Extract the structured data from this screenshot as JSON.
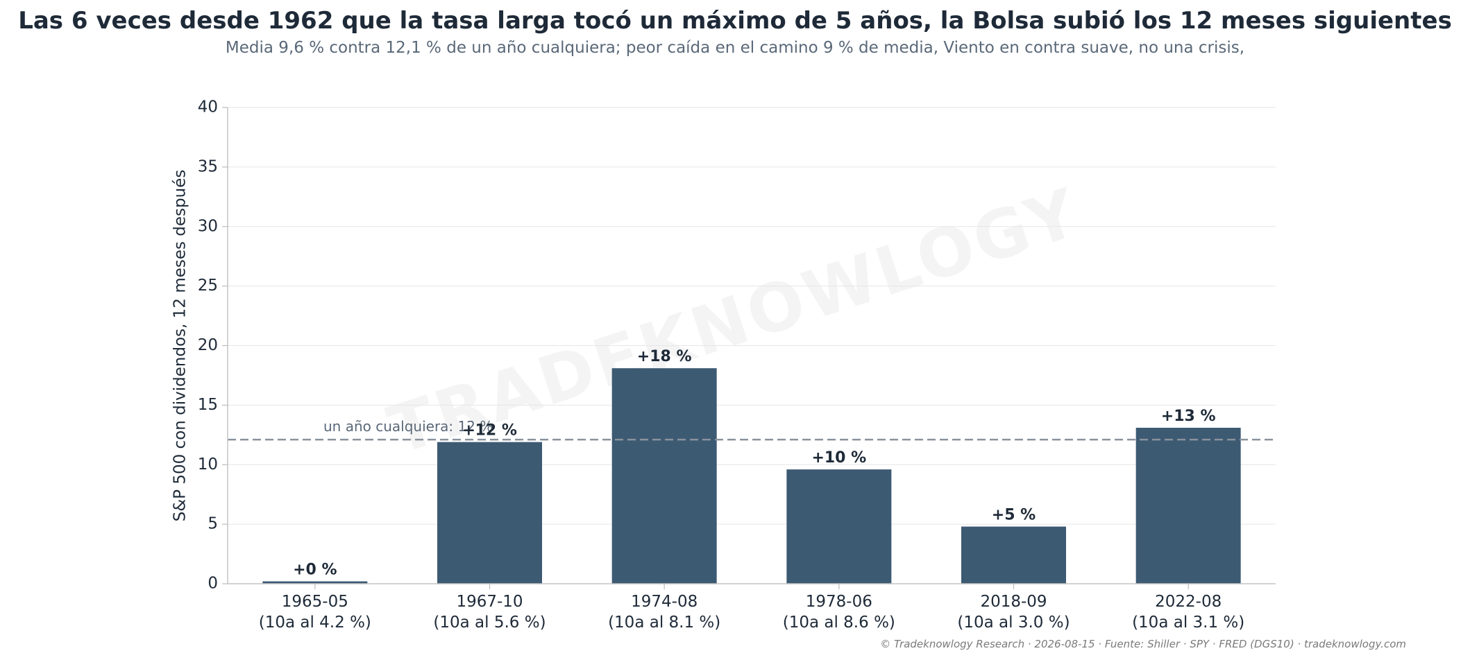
{
  "title": "Las 6 veces desde 1962 que la tasa larga tocó un máximo de 5 años, la Bolsa subió los 12 meses siguientes",
  "subtitle": "Media 9,6 % contra 12,1 % de un año cualquiera; peor caída en el camino 9 % de media, Viento en contra suave, no una crisis,",
  "footer": "© Tradeknowlogy Research   ·   2026-08-15   ·   Fuente: Shiller · SPY · FRED (DGS10)   ·   tradeknowlogy.com",
  "watermark": "TRADEKNOWLOGY",
  "colors": {
    "bar": "#3d5a73",
    "reference": "#8a929c",
    "text": "#1e2a38",
    "grid": "#e6e6e6"
  },
  "chart_data": {
    "type": "bar",
    "title": "Las 6 veces desde 1962 que la tasa larga tocó un máximo de 5 años, la Bolsa subió los 12 meses siguientes",
    "ylabel": "S&P 500 con dividendos, 12 meses después",
    "xlabel": "",
    "ylim": [
      0,
      40
    ],
    "yticks": [
      0,
      5,
      10,
      15,
      20,
      25,
      30,
      35,
      40
    ],
    "grid": "horizontal",
    "categories": [
      "1965-05",
      "1967-10",
      "1974-08",
      "1978-06",
      "2018-09",
      "2022-08"
    ],
    "sublabels": [
      "(10a al 4.2 %)",
      "(10a al 5.6 %)",
      "(10a al 8.1 %)",
      "(10a al 8.6 %)",
      "(10a al 3.0 %)",
      "(10a al 3.1 %)"
    ],
    "values": [
      0.2,
      11.9,
      18.1,
      9.6,
      4.8,
      13.1
    ],
    "data_labels": [
      "+0 %",
      "+12 %",
      "+18 %",
      "+10 %",
      "+5 %",
      "+13 %"
    ],
    "reference_line": {
      "value": 12.1,
      "label": "un año cualquiera: 12 %"
    }
  }
}
